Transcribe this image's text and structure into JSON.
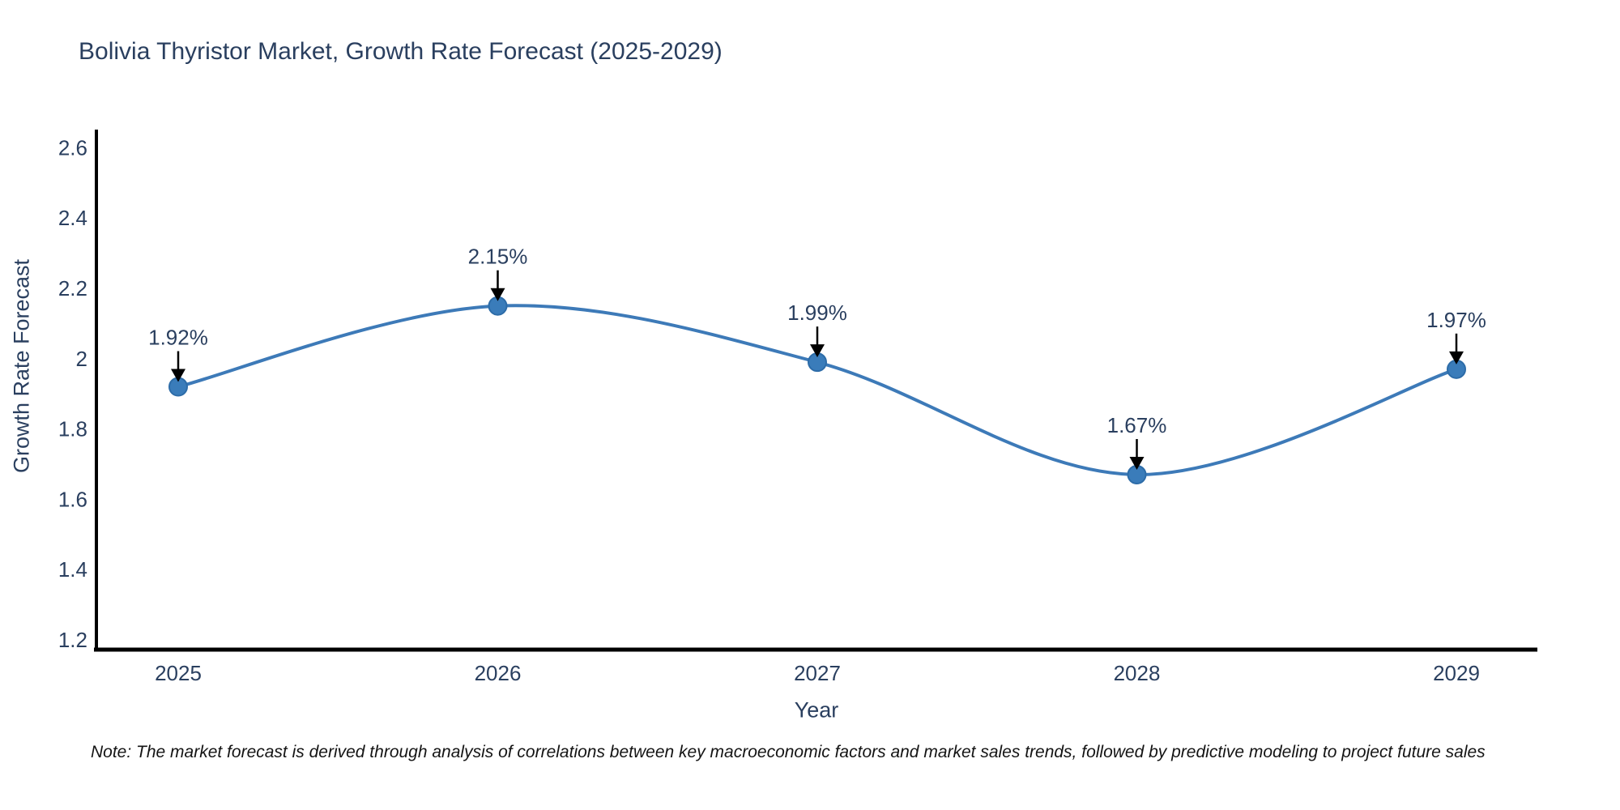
{
  "title": "Bolivia Thyristor Market, Growth Rate Forecast (2025-2029)",
  "note": "Note: The market forecast is derived through analysis of correlations between key macroeconomic factors and market sales trends, followed by predictive modeling to project future sales",
  "colors": {
    "title_text": "#2a3f5f",
    "tick_text": "#2a3f5f",
    "axis_line": "#000000",
    "series_line": "#3d7ab8",
    "marker_fill": "#3a7cba",
    "marker_stroke": "#2d6ca8",
    "annotation_text": "#2a3f5f",
    "arrow": "#000000",
    "note_text": "#141414",
    "background": "#ffffff"
  },
  "chart_data": {
    "type": "line",
    "title": "Bolivia Thyristor Market, Growth Rate Forecast (2025-2029)",
    "xlabel": "Year",
    "ylabel": "Growth Rate Forecast",
    "categories": [
      "2025",
      "2026",
      "2027",
      "2028",
      "2029"
    ],
    "series": [
      {
        "name": "Growth Rate Forecast",
        "values": [
          1.92,
          2.15,
          1.99,
          1.67,
          1.97
        ],
        "point_labels": [
          "1.92%",
          "2.15%",
          "1.99%",
          "1.67%",
          "1.97%"
        ]
      }
    ],
    "ytick_labels": [
      "1.2",
      "1.4",
      "1.6",
      "1.8",
      "2",
      "2.2",
      "2.4",
      "2.6"
    ],
    "ytick_values": [
      1.2,
      1.4,
      1.6,
      1.8,
      2.0,
      2.2,
      2.4,
      2.6
    ],
    "ylim": [
      1.17,
      2.65
    ],
    "line_shape": "spline",
    "line_width": 4,
    "marker_radius": 11,
    "grid": false,
    "legend": "none",
    "annotation_style": "value-label-with-down-arrow"
  }
}
